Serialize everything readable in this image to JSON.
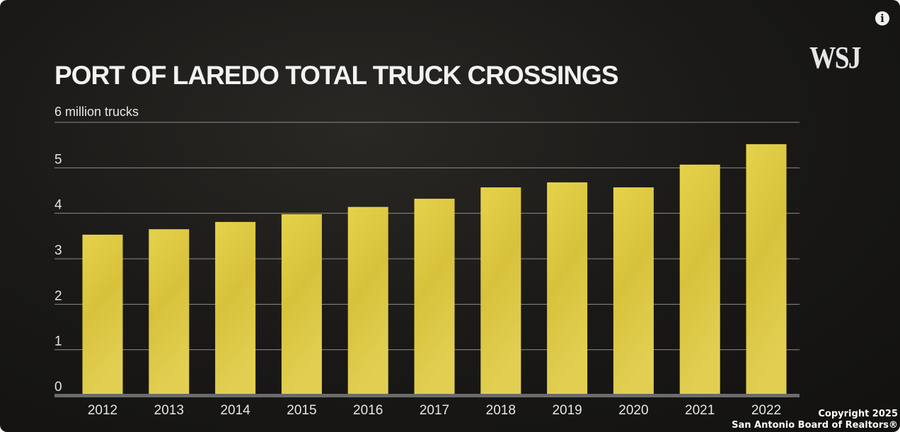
{
  "logo": "WSJ",
  "info_icon": "info-icon",
  "copyright": {
    "line1": "Copyright 2025",
    "line2": "San Antonio Board of Realtors®"
  },
  "colors": {
    "bar": "#dcc83c",
    "background": "#1a1917",
    "axis": "#6b6b6b"
  },
  "chart_data": {
    "type": "bar",
    "title": "PORT OF LAREDO TOTAL TRUCK CROSSINGS",
    "ylabel": "6 million trucks",
    "xlabel": "",
    "categories": [
      "2012",
      "2013",
      "2014",
      "2015",
      "2016",
      "2017",
      "2018",
      "2019",
      "2020",
      "2021",
      "2022"
    ],
    "values": [
      3.53,
      3.65,
      3.81,
      3.98,
      4.14,
      4.32,
      4.57,
      4.68,
      4.57,
      5.07,
      5.52
    ],
    "ylim": [
      0,
      6
    ],
    "yticks": [
      "0",
      "1",
      "2",
      "3",
      "4",
      "5"
    ],
    "grid": true
  }
}
